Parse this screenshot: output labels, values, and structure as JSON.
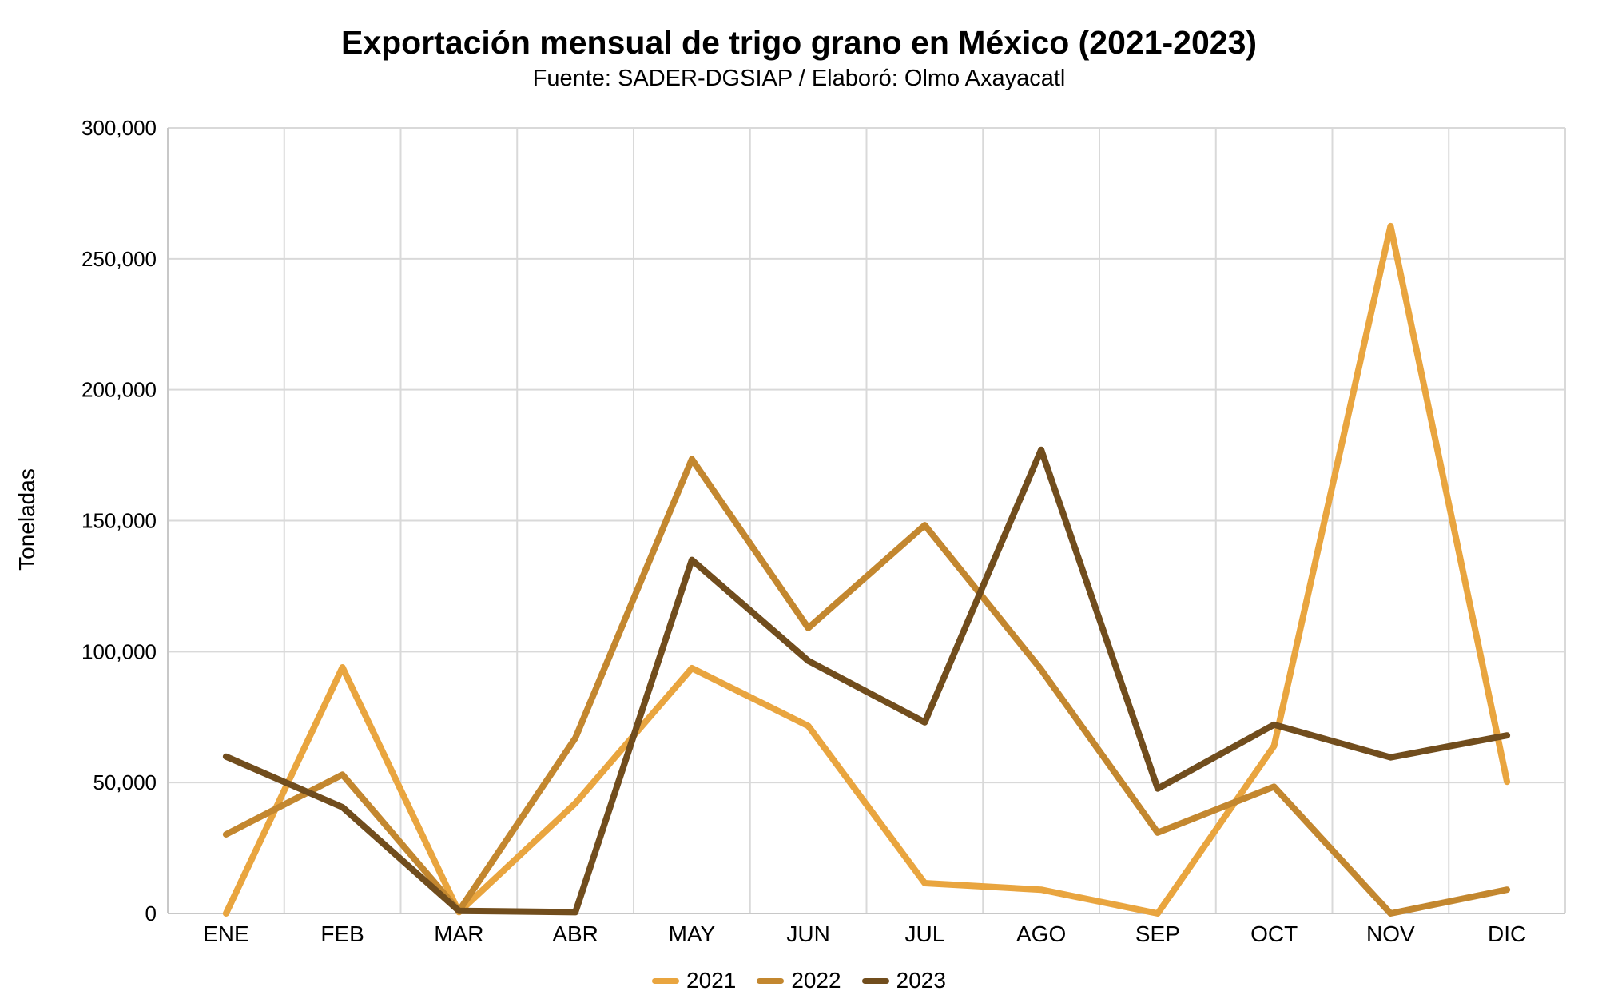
{
  "chart_data": {
    "type": "line",
    "title": "Exportación mensual de trigo grano en México (2021-2023)",
    "subtitle": "Fuente: SADER-DGSIAP / Elaboró: Olmo Axayacatl",
    "xlabel": "",
    "ylabel": "Toneladas",
    "categories": [
      "ENE",
      "FEB",
      "MAR",
      "ABR",
      "MAY",
      "JUN",
      "JUL",
      "AGO",
      "SEP",
      "OCT",
      "NOV",
      "DIC"
    ],
    "ylim": [
      0,
      300000
    ],
    "y_tick_step": 50000,
    "y_tick_values": [
      0,
      50000,
      100000,
      150000,
      200000,
      250000,
      300000
    ],
    "y_tick_labels": [
      "0",
      "50,000",
      "100,000",
      "150,000",
      "200,000",
      "250,000",
      "300,000"
    ],
    "grid": true,
    "legend_position": "bottom",
    "series": [
      {
        "name": "2021",
        "color": "#E9A53F",
        "values": [
          0,
          94000,
          500,
          42100,
          93700,
          71600,
          11600,
          9100,
          0,
          64000,
          262500,
          50300
        ]
      },
      {
        "name": "2022",
        "color": "#C3872F",
        "values": [
          30200,
          53000,
          1000,
          67000,
          173500,
          109000,
          148300,
          93100,
          30900,
          48400,
          0,
          9100
        ]
      },
      {
        "name": "2023",
        "color": "#714D1D",
        "values": [
          59900,
          40600,
          1000,
          500,
          135000,
          96500,
          73000,
          177100,
          47700,
          72100,
          59600,
          68000
        ]
      }
    ]
  },
  "style_colors": {
    "gridline": "#D9D9D9",
    "axis_line": "#C8C8C8",
    "text": "#000000",
    "background": "#FFFFFF"
  }
}
